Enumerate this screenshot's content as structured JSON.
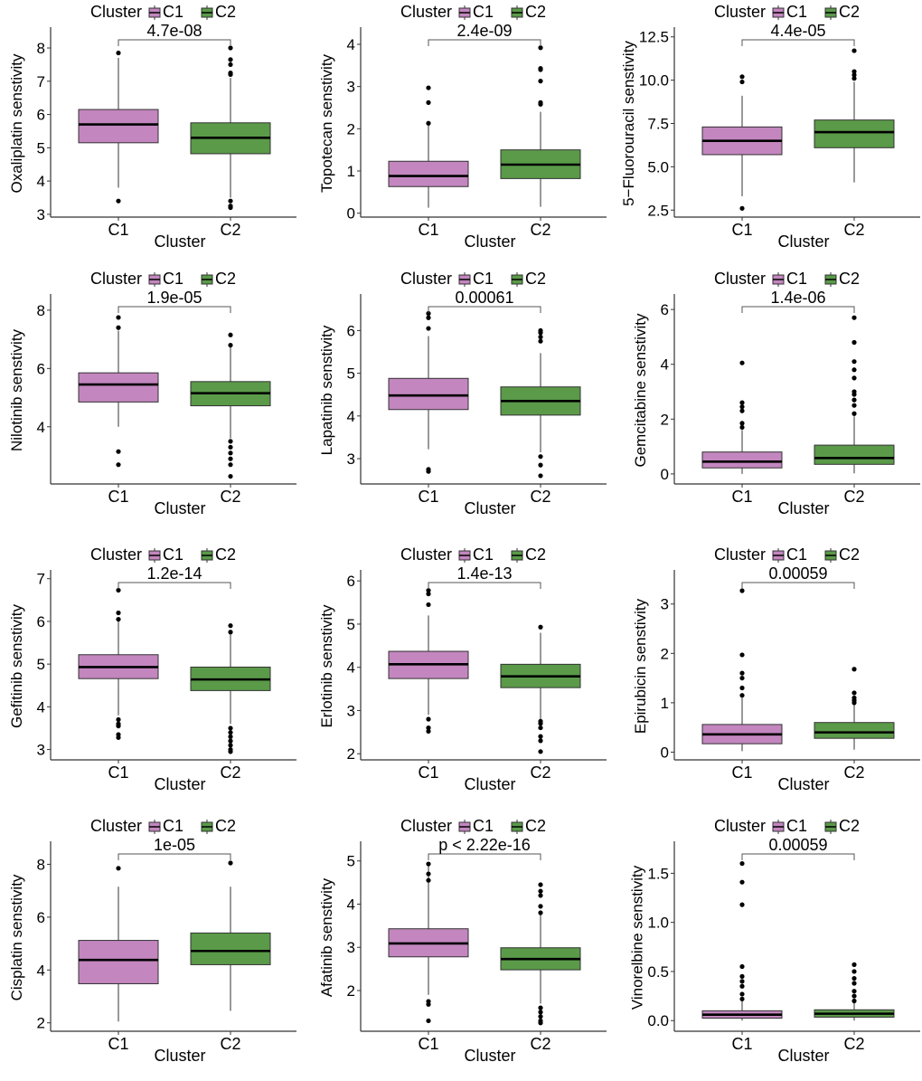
{
  "legend": {
    "title": "Cluster",
    "groups": [
      "C1",
      "C2"
    ]
  },
  "colors": {
    "C1": "#c386bf",
    "C2": "#5a9a48",
    "median": "#000000",
    "axis": "#333333"
  },
  "chart_data": [
    {
      "type": "box",
      "ylabel": "Oxaliplatin senstivity",
      "xlabel": "Cluster",
      "categories": [
        "C1",
        "C2"
      ],
      "pvalue": "4.7e-08",
      "yticks": [
        3,
        4,
        5,
        6,
        7,
        8
      ],
      "ytick_labels": [
        "3",
        "4",
        "5",
        "6",
        "7",
        "8"
      ],
      "ylim": [
        2.97,
        8.49
      ],
      "boxes": [
        {
          "lo": 3.8,
          "q1": 5.15,
          "median": 5.7,
          "q3": 6.15,
          "hi": 7.7,
          "outliers": [
            7.85,
            3.4
          ]
        },
        {
          "lo": 3.5,
          "q1": 4.82,
          "median": 5.3,
          "q3": 5.75,
          "hi": 7.1,
          "outliers": [
            8.0,
            7.65,
            7.5,
            7.25,
            7.2,
            3.4,
            3.25,
            3.2
          ]
        }
      ]
    },
    {
      "type": "box",
      "ylabel": "Topotecan senstivity",
      "xlabel": "Cluster",
      "categories": [
        "C1",
        "C2"
      ],
      "pvalue": "2.4e-09",
      "yticks": [
        0,
        1,
        2,
        3,
        4
      ],
      "ytick_labels": [
        "0",
        "1",
        "2",
        "3",
        "4"
      ],
      "ylim": [
        -0.05,
        4.3
      ],
      "boxes": [
        {
          "lo": 0.13,
          "q1": 0.63,
          "median": 0.88,
          "q3": 1.23,
          "hi": 2.1,
          "outliers": [
            2.13,
            2.62,
            2.97
          ]
        },
        {
          "lo": 0.15,
          "q1": 0.82,
          "median": 1.15,
          "q3": 1.5,
          "hi": 2.4,
          "outliers": [
            2.58,
            2.62,
            3.13,
            3.4,
            3.43,
            3.92
          ]
        }
      ]
    },
    {
      "type": "box",
      "ylabel": "5−Fluorouracil senstivity",
      "xlabel": "Cluster",
      "categories": [
        "C1",
        "C2"
      ],
      "pvalue": "4.4e-05",
      "yticks": [
        2.5,
        5,
        7.5,
        10,
        12.5
      ],
      "ytick_labels": [
        "2.5",
        "5.0",
        "7.5",
        "10.0",
        "12.5"
      ],
      "ylim": [
        2.2,
        12.8
      ],
      "boxes": [
        {
          "lo": 3.3,
          "q1": 5.7,
          "median": 6.5,
          "q3": 7.3,
          "hi": 9.1,
          "outliers": [
            9.9,
            10.2,
            2.6
          ]
        },
        {
          "lo": 4.1,
          "q1": 6.1,
          "median": 7.0,
          "q3": 7.7,
          "hi": 9.9,
          "outliers": [
            10.1,
            10.3,
            10.5,
            11.7
          ]
        }
      ]
    },
    {
      "type": "box",
      "ylabel": "Nilotinib senstivity",
      "xlabel": "Cluster",
      "categories": [
        "C1",
        "C2"
      ],
      "pvalue": "1.9e-05",
      "yticks": [
        4,
        6,
        8
      ],
      "ytick_labels": [
        "4",
        "6",
        "8"
      ],
      "ylim": [
        2.1,
        8.4
      ],
      "boxes": [
        {
          "lo": 4.0,
          "q1": 4.85,
          "median": 5.45,
          "q3": 5.85,
          "hi": 7.3,
          "outliers": [
            7.4,
            7.75,
            3.15,
            2.7
          ]
        },
        {
          "lo": 3.6,
          "q1": 4.72,
          "median": 5.15,
          "q3": 5.55,
          "hi": 6.8,
          "outliers": [
            7.15,
            6.8,
            3.5,
            3.3,
            3.1,
            2.9,
            2.7,
            2.3
          ]
        }
      ]
    },
    {
      "type": "box",
      "ylabel": "Lapatinib senstivity",
      "xlabel": "Cluster",
      "categories": [
        "C1",
        "C2"
      ],
      "pvalue": "0.00061",
      "yticks": [
        3,
        4,
        5,
        6
      ],
      "ytick_labels": [
        "3",
        "4",
        "5",
        "6"
      ],
      "ylim": [
        2.45,
        6.75
      ],
      "boxes": [
        {
          "lo": 3.22,
          "q1": 4.15,
          "median": 4.48,
          "q3": 4.88,
          "hi": 5.87,
          "outliers": [
            6.05,
            6.3,
            6.4,
            2.75,
            2.7
          ]
        },
        {
          "lo": 3.15,
          "q1": 4.02,
          "median": 4.35,
          "q3": 4.68,
          "hi": 5.47,
          "outliers": [
            5.75,
            5.85,
            5.95,
            6.0,
            3.05,
            2.85,
            2.6
          ]
        }
      ]
    },
    {
      "type": "box",
      "ylabel": "Gemcitabine senstivity",
      "xlabel": "Cluster",
      "categories": [
        "C1",
        "C2"
      ],
      "pvalue": "1.4e-06",
      "yticks": [
        0,
        2,
        4,
        6
      ],
      "ytick_labels": [
        "0",
        "2",
        "4",
        "6"
      ],
      "ylim": [
        -0.3,
        6.4
      ],
      "boxes": [
        {
          "lo": 0,
          "q1": 0.22,
          "median": 0.45,
          "q3": 0.8,
          "hi": 1.6,
          "outliers": [
            1.7,
            1.85,
            2.3,
            2.45,
            2.6,
            4.05
          ]
        },
        {
          "lo": 0.02,
          "q1": 0.35,
          "median": 0.58,
          "q3": 1.05,
          "hi": 2.1,
          "outliers": [
            2.2,
            2.5,
            2.7,
            2.9,
            3.0,
            3.5,
            3.8,
            4.1,
            4.8,
            5.7
          ]
        }
      ]
    },
    {
      "type": "box",
      "ylabel": "Gefitinib senstivity",
      "xlabel": "Cluster",
      "categories": [
        "C1",
        "C2"
      ],
      "pvalue": "1.2e-14",
      "yticks": [
        3,
        4,
        5,
        6,
        7
      ],
      "ytick_labels": [
        "3",
        "4",
        "5",
        "6",
        "7"
      ],
      "ylim": [
        2.8,
        7.1
      ],
      "boxes": [
        {
          "lo": 3.8,
          "q1": 4.66,
          "median": 4.93,
          "q3": 5.22,
          "hi": 6.0,
          "outliers": [
            6.05,
            6.2,
            6.73,
            3.7,
            3.6,
            3.55,
            3.35,
            3.28
          ]
        },
        {
          "lo": 3.6,
          "q1": 4.38,
          "median": 4.64,
          "q3": 4.93,
          "hi": 5.7,
          "outliers": [
            5.75,
            5.9,
            3.5,
            3.4,
            3.3,
            3.2,
            3.1,
            3.0,
            2.95
          ]
        }
      ]
    },
    {
      "type": "box",
      "ylabel": "Erlotinib senstivity",
      "xlabel": "Cluster",
      "categories": [
        "C1",
        "C2"
      ],
      "pvalue": "1.4e-13",
      "yticks": [
        2,
        3,
        4,
        5,
        6
      ],
      "ytick_labels": [
        "2",
        "3",
        "4",
        "5",
        "6"
      ],
      "ylim": [
        1.9,
        6.15
      ],
      "boxes": [
        {
          "lo": 2.9,
          "q1": 3.74,
          "median": 4.07,
          "q3": 4.37,
          "hi": 5.2,
          "outliers": [
            5.45,
            5.7,
            5.78,
            2.8,
            2.6,
            2.52
          ]
        },
        {
          "lo": 2.8,
          "q1": 3.53,
          "median": 3.79,
          "q3": 4.07,
          "hi": 4.8,
          "outliers": [
            4.93,
            2.75,
            2.7,
            2.6,
            2.4,
            2.3,
            2.05
          ]
        }
      ]
    },
    {
      "type": "box",
      "ylabel": "Epirubicin senstivity",
      "xlabel": "Cluster",
      "categories": [
        "C1",
        "C2"
      ],
      "pvalue": "0.00059",
      "yticks": [
        0,
        1,
        2,
        3
      ],
      "ytick_labels": [
        "0",
        "1",
        "2",
        "3"
      ],
      "ylim": [
        -0.12,
        3.6
      ],
      "boxes": [
        {
          "lo": 0.02,
          "q1": 0.17,
          "median": 0.36,
          "q3": 0.56,
          "hi": 1.1,
          "outliers": [
            1.15,
            1.3,
            1.5,
            1.6,
            1.97,
            3.27
          ]
        },
        {
          "lo": 0.05,
          "q1": 0.28,
          "median": 0.4,
          "q3": 0.6,
          "hi": 0.97,
          "outliers": [
            1.0,
            1.05,
            1.1,
            1.2,
            1.68
          ]
        }
      ]
    },
    {
      "type": "box",
      "ylabel": "Cisplatin senstivity",
      "xlabel": "Cluster",
      "categories": [
        "C1",
        "C2"
      ],
      "pvalue": "1e-05",
      "yticks": [
        2,
        4,
        6,
        8
      ],
      "ytick_labels": [
        "2",
        "4",
        "6",
        "8"
      ],
      "ylim": [
        1.75,
        8.7
      ],
      "boxes": [
        {
          "lo": 2.05,
          "q1": 3.48,
          "median": 4.38,
          "q3": 5.12,
          "hi": 7.15,
          "outliers": [
            7.85
          ]
        },
        {
          "lo": 2.45,
          "q1": 4.2,
          "median": 4.72,
          "q3": 5.4,
          "hi": 7.15,
          "outliers": [
            8.05
          ]
        }
      ]
    },
    {
      "type": "box",
      "ylabel": "Afatinib senstivity",
      "xlabel": "Cluster",
      "categories": [
        "C1",
        "C2"
      ],
      "pvalue": "p < 2.22e-16",
      "yticks": [
        2,
        3,
        4,
        5
      ],
      "ytick_labels": [
        "2",
        "3",
        "4",
        "5"
      ],
      "ylim": [
        1.1,
        5.35
      ],
      "boxes": [
        {
          "lo": 1.9,
          "q1": 2.78,
          "median": 3.09,
          "q3": 3.43,
          "hi": 4.95,
          "outliers": [
            4.93,
            4.7,
            4.55,
            1.75,
            1.68,
            1.3
          ]
        },
        {
          "lo": 1.7,
          "q1": 2.48,
          "median": 2.73,
          "q3": 2.99,
          "hi": 3.75,
          "outliers": [
            3.8,
            3.95,
            4.2,
            4.3,
            4.45,
            1.6,
            1.5,
            1.4,
            1.3,
            1.25
          ]
        }
      ]
    },
    {
      "type": "box",
      "ylabel": "Vinorelbine senstivity",
      "xlabel": "Cluster",
      "categories": [
        "C1",
        "C2"
      ],
      "pvalue": "0.00059",
      "yticks": [
        0,
        0.5,
        1,
        1.5
      ],
      "ytick_labels": [
        "0.0",
        "0.5",
        "1.0",
        "1.5"
      ],
      "ylim": [
        -0.09,
        1.78
      ],
      "boxes": [
        {
          "lo": 0,
          "q1": 0.025,
          "median": 0.06,
          "q3": 0.1,
          "hi": 0.2,
          "outliers": [
            0.22,
            0.27,
            0.35,
            0.4,
            0.45,
            0.55,
            1.18,
            1.41,
            1.6
          ]
        },
        {
          "lo": 0,
          "q1": 0.035,
          "median": 0.07,
          "q3": 0.11,
          "hi": 0.18,
          "outliers": [
            0.2,
            0.25,
            0.3,
            0.38,
            0.43,
            0.5,
            0.57
          ]
        }
      ]
    }
  ]
}
